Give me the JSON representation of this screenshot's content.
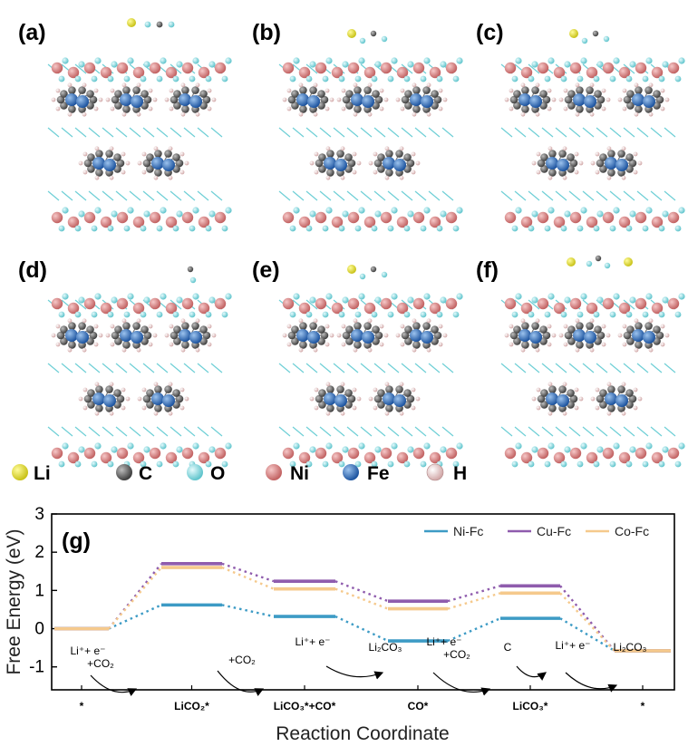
{
  "panels": [
    "(a)",
    "(b)",
    "(c)",
    "(d)",
    "(e)",
    "(f)"
  ],
  "atom_legend": [
    {
      "label": "Li",
      "color": "#e8e52a"
    },
    {
      "label": "C",
      "color": "#5f5f5f"
    },
    {
      "label": "O",
      "color": "#8fd9de"
    },
    {
      "label": "Ni",
      "color": "#d98585"
    },
    {
      "label": "Fe",
      "color": "#2f6fb8"
    },
    {
      "label": "H",
      "color": "#e3c3c3"
    }
  ],
  "chart_label": "(g)",
  "chart_data": {
    "type": "line",
    "ylabel": "Free Energy (eV)",
    "xlabel": "Reaction Coordinate",
    "ylim": [
      -1.6,
      3
    ],
    "yticks": [
      "3",
      "2",
      "1",
      "0",
      "-1"
    ],
    "categories": [
      "*",
      "LiCO₂*",
      "LiCO₃*+CO*",
      "CO*",
      "LiCO₃*",
      "*"
    ],
    "series": [
      {
        "name": "Ni-Fc",
        "color": "#3d9bc5",
        "values": [
          0,
          0.62,
          0.32,
          -0.32,
          0.27,
          -0.58
        ]
      },
      {
        "name": "Cu-Fc",
        "color": "#8f5cad",
        "values": [
          0,
          1.7,
          1.24,
          0.72,
          1.12,
          -0.58
        ]
      },
      {
        "name": "Co-Fc",
        "color": "#f5c98c",
        "values": [
          0,
          1.6,
          1.04,
          0.52,
          0.93,
          -0.58
        ]
      }
    ],
    "annotations": [
      {
        "line1": "Li⁺+ e⁻",
        "line2": "+CO₂"
      },
      {
        "line1": "",
        "line2": "+CO₂"
      },
      {
        "line1": "Li⁺+ e⁻",
        "line2": ""
      },
      {
        "line1": "Li₂CO₃",
        "line2": ""
      },
      {
        "line1": "Li⁺+ e⁻",
        "line2": "+CO₂"
      },
      {
        "line1": "C",
        "line2": ""
      },
      {
        "line1": "Li⁺+ e⁻",
        "line2": ""
      },
      {
        "line1": "Li₂CO₃",
        "line2": ""
      }
    ]
  }
}
